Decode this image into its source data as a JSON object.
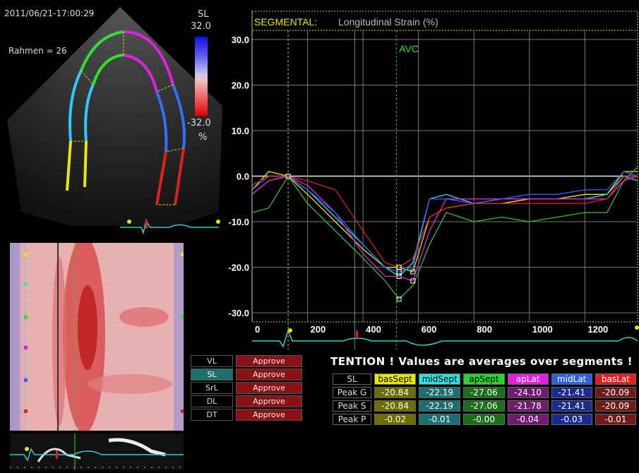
{
  "echo": {
    "date": "2011/06/21-17:00:29",
    "frame": "Rahmen = 26",
    "scale_label": "SL",
    "scale_max": "32.0",
    "scale_min": "-32.0",
    "scale_unit": "%"
  },
  "plot": {
    "title_prefix": "SEGMENTAL:",
    "title": "Longitudinal Strain (%)",
    "avc_label": "AVC",
    "y_ticks": [
      "30.0",
      "20.0",
      "10.0",
      "0.0",
      "-10.0",
      "-20.0",
      "-30.0"
    ],
    "x_ticks": [
      "0",
      "200",
      "400",
      "600",
      "800",
      "1000",
      "1200"
    ]
  },
  "chart_data": {
    "type": "line",
    "title": "Longitudinal Strain (%)",
    "xlabel": "",
    "ylabel": "",
    "xlim": [
      0,
      1390
    ],
    "ylim": [
      -32,
      32
    ],
    "grid": true,
    "markers": {
      "AVC": 520
    },
    "series": [
      {
        "name": "basSept",
        "color": "#e8e800",
        "x": [
          0,
          60,
          130,
          200,
          300,
          400,
          480,
          530,
          580,
          640,
          700,
          800,
          900,
          1000,
          1100,
          1200,
          1280,
          1340,
          1390
        ],
        "y": [
          -3,
          1,
          0,
          -4,
          -10,
          -16,
          -20,
          -20,
          -21,
          -9,
          -7,
          -6,
          -6,
          -5,
          -5,
          -4,
          -4,
          1,
          1
        ]
      },
      {
        "name": "midSept",
        "color": "#30e0e0",
        "x": [
          0,
          60,
          130,
          200,
          300,
          400,
          480,
          530,
          580,
          640,
          700,
          800,
          900,
          1000,
          1100,
          1200,
          1280,
          1340,
          1390
        ],
        "y": [
          -4,
          -1,
          0,
          -3,
          -9,
          -15,
          -20,
          -22,
          -19,
          -5,
          -4,
          -6,
          -5,
          -5,
          -5,
          -5,
          -4,
          0,
          -1
        ]
      },
      {
        "name": "apSept",
        "color": "#30c030",
        "x": [
          0,
          60,
          130,
          200,
          300,
          400,
          480,
          530,
          580,
          640,
          700,
          800,
          900,
          1000,
          1100,
          1200,
          1280,
          1340,
          1390
        ],
        "y": [
          -8,
          -7,
          0,
          -6,
          -12,
          -18,
          -23,
          -27,
          -24,
          -15,
          -8,
          -10,
          -9,
          -10,
          -9,
          -8,
          -8,
          -1,
          2
        ]
      },
      {
        "name": "apLat",
        "color": "#e020e0",
        "x": [
          0,
          60,
          130,
          200,
          300,
          400,
          480,
          530,
          580,
          640,
          700,
          800,
          900,
          1000,
          1100,
          1200,
          1280,
          1340,
          1390
        ],
        "y": [
          -4,
          -1,
          0,
          -2,
          -8,
          -17,
          -22,
          -22,
          -23,
          -12,
          -5,
          -5,
          -5,
          -5,
          -5,
          -5,
          -5,
          -1,
          0
        ]
      },
      {
        "name": "midLat",
        "color": "#3060ff",
        "x": [
          0,
          60,
          130,
          200,
          300,
          400,
          480,
          530,
          580,
          640,
          700,
          800,
          900,
          1000,
          1100,
          1200,
          1280,
          1340,
          1390
        ],
        "y": [
          -3,
          0,
          0,
          -3,
          -8,
          -15,
          -20,
          -21,
          -20,
          -5,
          -5,
          -6,
          -5,
          -4,
          -4,
          -3,
          -3,
          1,
          0
        ]
      },
      {
        "name": "basLat",
        "color": "#e02020",
        "x": [
          0,
          60,
          130,
          200,
          300,
          400,
          480,
          530,
          580,
          640,
          700,
          800,
          900,
          1000,
          1100,
          1200,
          1280,
          1340,
          1390
        ],
        "y": [
          -2,
          0,
          0,
          -1,
          -3,
          -12,
          -19,
          -20,
          -18,
          -9,
          -7,
          -6,
          -6,
          -6,
          -6,
          -6,
          -5,
          0,
          0
        ]
      }
    ]
  },
  "tags": [
    {
      "label": "VL",
      "button": "Approve"
    },
    {
      "label": "SL",
      "button": "Approve"
    },
    {
      "label": "SrL",
      "button": "Approve"
    },
    {
      "label": "DL",
      "button": "Approve"
    },
    {
      "label": "DT",
      "button": "Approve"
    }
  ],
  "attention": "TENTION !  Values are averages over segments !",
  "table": {
    "corner": "SL",
    "headers": [
      {
        "label": "basSept",
        "bg": "#e8e800",
        "fg": "#000"
      },
      {
        "label": "midSept",
        "bg": "#30e0e0",
        "fg": "#000"
      },
      {
        "label": "apSept",
        "bg": "#30d030",
        "fg": "#000"
      },
      {
        "label": "apLat",
        "bg": "#e020e0",
        "fg": "#fff"
      },
      {
        "label": "midLat",
        "bg": "#3060e0",
        "fg": "#fff"
      },
      {
        "label": "basLat",
        "bg": "#e02020",
        "fg": "#fff"
      }
    ],
    "cell_colors": [
      "#6e6e00",
      "#1a7070",
      "#1a701a",
      "#701a70",
      "#1a2a90",
      "#701a1a"
    ],
    "rows": [
      {
        "label": "Peak G",
        "values": [
          "-20.84",
          "-22.19",
          "-27.06",
          "-24.10",
          "-21.41",
          "-20.09"
        ]
      },
      {
        "label": "Peak S",
        "values": [
          "-20.84",
          "-22.19",
          "-27.06",
          "-21.78",
          "-21.41",
          "-20.09"
        ]
      },
      {
        "label": "Peak P",
        "values": [
          "-0.02",
          "-0.01",
          "-0.00",
          "-0.04",
          "-0.03",
          "-0.01"
        ]
      }
    ]
  }
}
